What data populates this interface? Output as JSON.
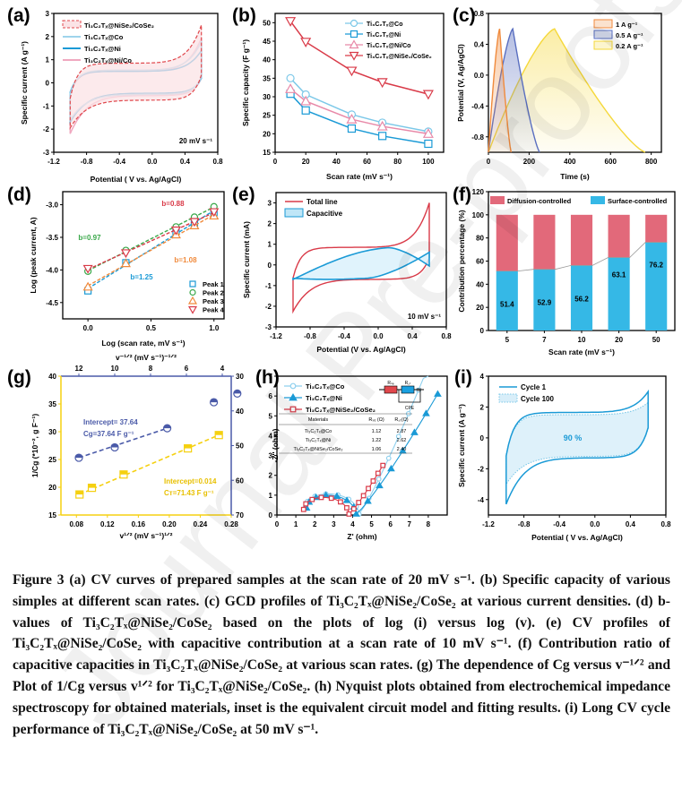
{
  "figure": {
    "panel_labels": [
      "(a)",
      "(b)",
      "(c)",
      "(d)",
      "(e)",
      "(f)",
      "(g)",
      "(h)",
      "(i)"
    ],
    "watermark": "Journal Pre-proofs",
    "caption": {
      "lines": [
        "Figure 3 (a) CV curves of prepared samples at the scan rate of 20 mV s⁻¹. (b) Specific capacity of various simples at different scan rates. (c) GCD profiles of Ti₃C₂Tₓ@NiSe₂/CoSe₂ at various current densities. (d) b-values of Ti₃C₂Tₓ@NiSe₂/CoSe₂ based on the plots of log (i) versus log (v). (e) CV profiles of Ti₃C₂Tₓ@NiSe₂/CoSe₂ with capacitive contribution at a scan rate of 10 mV s⁻¹. (f) Contribution ratio of capacitive capacities in Ti₃C₂Tₓ@NiSe₂/CoSe₂ at various scan rates. (g) The dependence of Cg versus v⁻¹ᐟ² and Plot of 1/Cg versus v¹ᐟ² for Ti₃C₂Tₓ@NiSe₂/CoSe₂. (h) Nyquist plots obtained from electrochemical impedance spectroscopy for obtained materials, inset is the equivalent circuit model and fitting results. (i) Long CV cycle performance of Ti₃C₂Tₓ@NiSe₂/CoSe₂ at 50 mV s⁻¹."
      ]
    }
  },
  "chart_data": [
    {
      "id": "a",
      "type": "line",
      "title": "",
      "xlabel": "Potential ( V vs. Ag/AgCl)",
      "ylabel": "Specific current (A g⁻¹)",
      "xlim": [
        -1.2,
        0.8
      ],
      "ylim": [
        -3,
        3
      ],
      "xticks": [
        "-1.2",
        "-0.8",
        "-0.4",
        "0.0",
        "0.4",
        "0.8"
      ],
      "yticks": [
        "-3",
        "-2",
        "-1",
        "0",
        "1",
        "2",
        "3"
      ],
      "annotation": "20 mV s⁻¹",
      "legend_position": "top-left",
      "series": [
        {
          "name": "Ti₃C₂Tₓ@NiSe₂/CoSe₂",
          "color": "#e0474c",
          "style": "dashed-filled",
          "upper_at_0": 0.85,
          "lower_at_0": -0.75,
          "top": 2.5,
          "bottom": -1.95
        },
        {
          "name": "Ti₃C₂Tₓ@Co",
          "color": "#9fd4ec",
          "style": "solid",
          "upper_at_0": 0.55,
          "lower_at_0": -0.5,
          "top": 1.8,
          "bottom": -1.6
        },
        {
          "name": "Ti₃C₂Tₓ@Ni",
          "color": "#1a9ad6",
          "style": "solid",
          "upper_at_0": 0.5,
          "lower_at_0": -0.45,
          "top": 1.4,
          "bottom": -1.7
        },
        {
          "name": "Ti₃C₂Tₓ@Ni/Co",
          "color": "#f0a8c0",
          "style": "solid",
          "upper_at_0": 0.5,
          "lower_at_0": -0.55,
          "top": 1.95,
          "bottom": -2.2
        }
      ]
    },
    {
      "id": "b",
      "type": "line",
      "xlabel": "Scan rate (mV s⁻¹)",
      "ylabel": "Specific capacity (F g⁻¹)",
      "xlim": [
        0,
        110
      ],
      "ylim": [
        15,
        52.5
      ],
      "xticks": [
        "0",
        "20",
        "40",
        "60",
        "80",
        "100"
      ],
      "yticks": [
        "15",
        "20",
        "25",
        "30",
        "35",
        "40",
        "45",
        "50"
      ],
      "legend_position": "top-right",
      "x": [
        10,
        20,
        50,
        70,
        100
      ],
      "series": [
        {
          "name": "Ti₃C₂Tₓ@Co",
          "color": "#7cc8e8",
          "marker": "circle",
          "values": [
            35.0,
            30.6,
            25.2,
            23.0,
            20.6
          ]
        },
        {
          "name": "Ti₃C₂Tₓ@Ni",
          "color": "#1a9ad6",
          "marker": "square",
          "values": [
            30.8,
            26.3,
            21.4,
            19.4,
            17.3
          ]
        },
        {
          "name": "Ti₃C₂Tₓ@Ni/Co",
          "color": "#e889a8",
          "marker": "triangle-up",
          "values": [
            32.1,
            28.8,
            23.9,
            22.0,
            20.0
          ]
        },
        {
          "name": "Ti₃C₂Tₓ@NiSe₂/CoSe₂",
          "color": "#d93a48",
          "marker": "triangle-down",
          "values": [
            50.4,
            44.8,
            37.0,
            33.9,
            30.7
          ]
        }
      ]
    },
    {
      "id": "c",
      "type": "area",
      "xlabel": "Time (s)",
      "ylabel": "Potential (V, Ag/AgCl)",
      "xlim": [
        0,
        850
      ],
      "ylim": [
        -1.0,
        0.8
      ],
      "xticks": [
        "0",
        "200",
        "400",
        "600",
        "800"
      ],
      "yticks": [
        "-0.8",
        "-0.4",
        "0.0",
        "0.4",
        "0.8"
      ],
      "legend_position": "top-right",
      "series": [
        {
          "name": "1 A g⁻¹",
          "color": "#f08a3c",
          "charge_end_time": 55,
          "discharge_end_time": 112
        },
        {
          "name": "0.5 A g⁻¹",
          "color": "#5a6fc0",
          "charge_end_time": 120,
          "discharge_end_time": 252
        },
        {
          "name": "0.2 A g⁻¹",
          "color": "#f5d83a",
          "charge_end_time": 325,
          "discharge_end_time": 770
        }
      ],
      "voltage_window": [
        -1.0,
        0.6
      ]
    },
    {
      "id": "d",
      "type": "scatter",
      "xlabel": "Log (scan rate, mV s⁻¹)",
      "ylabel": "Log (peak current, A)",
      "xlim": [
        -0.2,
        1.08
      ],
      "ylim": [
        -4.75,
        -2.8
      ],
      "xticks": [
        "0.0",
        "0.5",
        "1.0"
      ],
      "yticks": [
        "-4.5",
        "-4.0",
        "-3.5",
        "-3.0"
      ],
      "legend_position": "bottom-right",
      "x": [
        0.0,
        0.301,
        0.699,
        0.845,
        1.0
      ],
      "series": [
        {
          "name": "Peak 1",
          "color": "#1a9ad6",
          "marker": "square",
          "values": [
            -4.32,
            -3.89,
            -3.41,
            -3.28,
            -3.12
          ],
          "b": "b=1.25"
        },
        {
          "name": "Peak 2",
          "color": "#3aa84a",
          "marker": "circle",
          "values": [
            -4.02,
            -3.7,
            -3.34,
            -3.19,
            -3.03
          ],
          "b": "b=0.97"
        },
        {
          "name": "Peak 3",
          "color": "#f08a3c",
          "marker": "triangle-up",
          "values": [
            -4.26,
            -3.9,
            -3.46,
            -3.32,
            -3.17
          ],
          "b": "b=1.08"
        },
        {
          "name": "Peak 4",
          "color": "#d93a48",
          "marker": "triangle-down",
          "values": [
            -3.98,
            -3.74,
            -3.39,
            -3.26,
            -3.11
          ],
          "b": "b=0.88"
        }
      ]
    },
    {
      "id": "e",
      "type": "line",
      "xlabel": "Potential (V vs. Ag/AgCl)",
      "ylabel": "Specific current (mA)",
      "xlim": [
        -1.2,
        0.8
      ],
      "ylim": [
        -3,
        3.5
      ],
      "xticks": [
        "-1.2",
        "-0.8",
        "-0.4",
        "0.0",
        "0.4",
        "0.8"
      ],
      "yticks": [
        "-3",
        "-2",
        "-1",
        "0",
        "1",
        "2",
        "3"
      ],
      "annotation": "10 mV s⁻¹",
      "legend_position": "top-left",
      "series": [
        {
          "name": "Total line",
          "color": "#d93a48"
        },
        {
          "name": "Capacitive",
          "color": "#1a9ad6"
        }
      ]
    },
    {
      "id": "f",
      "type": "bar",
      "xlabel": "Scan rate (mV s⁻¹)",
      "ylabel": "Contribution percentage (%)",
      "ylim": [
        0,
        120
      ],
      "yticks": [
        "0",
        "20",
        "40",
        "60",
        "80",
        "100",
        "120"
      ],
      "categories": [
        "5",
        "7",
        "10",
        "20",
        "50"
      ],
      "legend_position": "top",
      "series": [
        {
          "name": "Surface-controlled",
          "color": "#35b8e6",
          "values": [
            51.4,
            52.9,
            56.2,
            63.1,
            76.2
          ]
        },
        {
          "name": "Diffusion-controlled",
          "color": "#e2697a",
          "values": [
            48.6,
            47.1,
            43.8,
            36.9,
            23.8
          ]
        }
      ],
      "data_labels": [
        "51.4",
        "52.9",
        "56.2",
        "63.1",
        "76.2"
      ]
    },
    {
      "id": "g",
      "type": "scatter",
      "xlabel": "v¹ᐟ² (mV s⁻¹)¹ᐟ²",
      "ylabel": "1/Cg (*10⁻², g F⁻¹)",
      "x2label": "v⁻¹ᐟ² (mV s⁻¹)⁻¹ᐟ²",
      "y2label": "Cg (F g⁻¹)",
      "xlim": [
        0.06,
        0.28
      ],
      "ylim": [
        15,
        40
      ],
      "x2lim": [
        13.0,
        3.5
      ],
      "y2lim": [
        30,
        70
      ],
      "xticks": [
        "0.08",
        "0.12",
        "0.16",
        "0.20",
        "0.24",
        "0.28"
      ],
      "yticks": [
        "15",
        "20",
        "25",
        "30",
        "35",
        "40"
      ],
      "x2ticks": [
        "12",
        "10",
        "8",
        "6",
        "4"
      ],
      "y2ticks": [
        "30",
        "40",
        "50",
        "60",
        "70"
      ],
      "series": [
        {
          "name": "Cg vs v^-1/2",
          "color": "#4a5aa8",
          "marker": "half-circle",
          "x2": [
            12.0,
            10.0,
            7.07,
            4.47,
            3.16
          ],
          "y2": [
            53.5,
            50.5,
            45.0,
            37.5,
            35.0
          ],
          "annotation": [
            "Intercept= 37.64",
            "Cg=37.64 F g⁻¹"
          ]
        },
        {
          "name": "1/Cg vs v^1/2",
          "color": "#f5d010",
          "marker": "half-square",
          "x": [
            0.084,
            0.1,
            0.141,
            0.224,
            0.264
          ],
          "y": [
            18.7,
            19.9,
            22.3,
            27.0,
            29.4
          ],
          "annotation": [
            "Intercept=0.014",
            "Cт=71.43 F g⁻¹"
          ]
        }
      ]
    },
    {
      "id": "h",
      "type": "line",
      "xlabel": "Z' (ohm)",
      "ylabel": "-Z'' (ohm)",
      "xlim": [
        0,
        9
      ],
      "ylim": [
        0,
        7
      ],
      "xticks": [
        "0",
        "1",
        "2",
        "3",
        "4",
        "5",
        "6",
        "7",
        "8"
      ],
      "yticks": [
        "0",
        "1",
        "2",
        "3",
        "4",
        "5",
        "6",
        "7"
      ],
      "legend_position": "top-left",
      "series": [
        {
          "name": "Ti₃C₂Tₓ@Co",
          "color": "#8fd0ee",
          "marker": "circle",
          "rs": 1.12,
          "rct": 2.87
        },
        {
          "name": "Ti₃C₂Tₓ@Ni",
          "color": "#1a9ad6",
          "marker": "triangle-up",
          "rs": 1.22,
          "rct": 2.62
        },
        {
          "name": "Ti₃C₂Tₓ@NiSe₂/CoSe₂",
          "color": "#d93a48",
          "marker": "square",
          "rs": 1.06,
          "rct": 2.4
        }
      ],
      "inset_table": {
        "headers": [
          "Materials",
          "Rₛₑ (Ω)",
          "R꜀ₜ(Ω)"
        ],
        "rows": [
          [
            "Ti₃C₂Tₓ@Co",
            "1.12",
            "2.87"
          ],
          [
            "Ti₃C₂Tₓ@Ni",
            "1.22",
            "2.62"
          ],
          [
            "Ti₃C₂Tₓ@NiSe₂/CoSe₂",
            "1.06",
            "2.40"
          ]
        ]
      },
      "circuit_labels": [
        "Rₛₑ",
        "R꜀ₜ",
        "W",
        "CPE"
      ]
    },
    {
      "id": "i",
      "type": "line",
      "xlabel": "Potential ( V vs. Ag/AgCl)",
      "ylabel": "Specific current (A g⁻¹)",
      "xlim": [
        -1.2,
        0.8
      ],
      "ylim": [
        -5,
        4
      ],
      "xticks": [
        "-1.2",
        "-0.8",
        "-0.4",
        "0.0",
        "0.4",
        "0.8"
      ],
      "yticks": [
        "-4",
        "-2",
        "0",
        "2",
        "4"
      ],
      "annotation": "90 %",
      "legend_position": "top-left",
      "series": [
        {
          "name": "Cycle 1",
          "color": "#1a9ad6",
          "style": "solid",
          "upper_at_0": 1.65,
          "lower_at_0": -1.3,
          "top": 3.0,
          "bottom": -4.3
        },
        {
          "name": "Cycle 100",
          "color": "#7cc8e8",
          "style": "dotted-filled",
          "upper_at_0": 1.5,
          "lower_at_0": -1.2,
          "top": 2.3,
          "bottom": -3.0
        }
      ]
    }
  ]
}
